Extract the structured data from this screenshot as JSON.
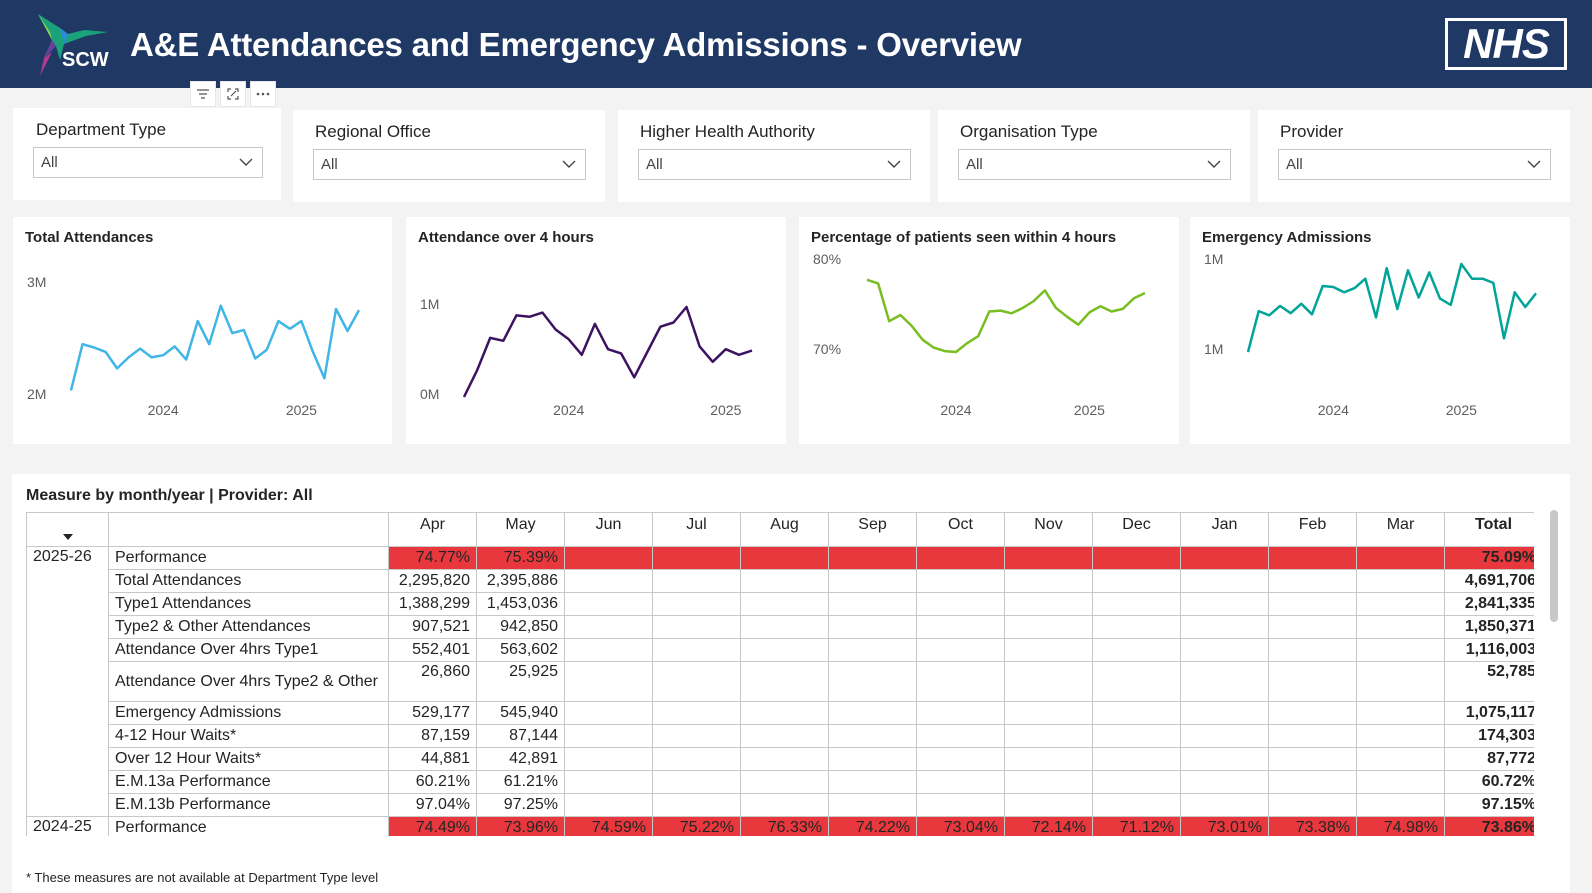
{
  "header": {
    "title": "A&E Attendances and Emergency Admissions - Overview",
    "logo_text": "SCW",
    "nhs_logo": "NHS"
  },
  "toolbar": {
    "icons": [
      "filter-icon",
      "focus-mode-icon",
      "more-options-icon"
    ]
  },
  "slicers": [
    {
      "label": "Department Type",
      "value": "All"
    },
    {
      "label": "Regional Office",
      "value": "All"
    },
    {
      "label": "Higher Health Authority",
      "value": "All"
    },
    {
      "label": "Organisation Type",
      "value": "All"
    },
    {
      "label": "Provider",
      "value": "All"
    }
  ],
  "charts": {
    "total_attendances": {
      "title": "Total Attendances"
    },
    "attendance_4hrs": {
      "title": "Attendance over 4 hours"
    },
    "pct_4hrs": {
      "title": "Percentage of patients seen within 4 hours"
    },
    "emergency_admissions": {
      "title": "Emergency Admissions"
    }
  },
  "chart_data": [
    {
      "type": "line",
      "title": "Total Attendances",
      "color": "#41b6e6",
      "y_ticks": [
        "3M",
        "2M"
      ],
      "ylim": [
        2.0,
        3.0
      ],
      "x_ticks": [
        "2024",
        "2025"
      ],
      "x_tick_index": [
        8,
        20
      ],
      "values": [
        2.06,
        2.48,
        2.45,
        2.41,
        2.26,
        2.36,
        2.44,
        2.36,
        2.38,
        2.46,
        2.34,
        2.69,
        2.48,
        2.83,
        2.58,
        2.61,
        2.35,
        2.43,
        2.69,
        2.62,
        2.69,
        2.41,
        2.17,
        2.8,
        2.6,
        2.79
      ]
    },
    {
      "type": "line",
      "title": "Attendance over 4 hours",
      "color": "#3c1361",
      "y_ticks": [
        "1M",
        "0M"
      ],
      "x_ticks": [
        "2024",
        "2025"
      ],
      "x_tick_index": [
        8,
        20
      ],
      "values": [
        0.26,
        0.45,
        0.68,
        0.66,
        0.84,
        0.83,
        0.86,
        0.74,
        0.67,
        0.56,
        0.78,
        0.6,
        0.57,
        0.4,
        0.58,
        0.76,
        0.79,
        0.9,
        0.62,
        0.51,
        0.6,
        0.56,
        0.59
      ]
    },
    {
      "type": "line",
      "title": "Percentage of patients seen within 4 hours",
      "color": "#78be20",
      "y_ticks": [
        "80%",
        "70%"
      ],
      "ylim": [
        70,
        80
      ],
      "x_ticks": [
        "2024",
        "2025"
      ],
      "x_tick_index": [
        8,
        20
      ],
      "values": [
        78.2,
        77.8,
        73.5,
        74.2,
        73.0,
        71.4,
        70.5,
        70.1,
        70.0,
        71.0,
        71.8,
        74.6,
        74.7,
        74.4,
        75.0,
        75.8,
        77.0,
        75.0,
        74.0,
        73.1,
        74.5,
        75.2,
        74.6,
        74.9,
        76.1,
        76.7
      ]
    },
    {
      "type": "line",
      "title": "Emergency Admissions",
      "color": "#00a499",
      "y_ticks": [
        "1M",
        "1M"
      ],
      "x_ticks": [
        "2024",
        "2025"
      ],
      "x_tick_index": [
        8,
        20
      ],
      "values": [
        0.473,
        0.512,
        0.508,
        0.517,
        0.51,
        0.519,
        0.509,
        0.536,
        0.535,
        0.53,
        0.534,
        0.543,
        0.506,
        0.553,
        0.514,
        0.551,
        0.525,
        0.549,
        0.524,
        0.518,
        0.557,
        0.543,
        0.543,
        0.539,
        0.486,
        0.53,
        0.516,
        0.529
      ]
    }
  ],
  "matrix": {
    "title": "Measure by month/year | Provider: All",
    "columns": [
      "Apr",
      "May",
      "Jun",
      "Jul",
      "Aug",
      "Sep",
      "Oct",
      "Nov",
      "Dec",
      "Jan",
      "Feb",
      "Mar",
      "Total"
    ],
    "group_2025": {
      "year": "2025-26",
      "rows": [
        {
          "label": "Performance",
          "values": [
            "74.77%",
            "75.39%",
            "",
            "",
            "",
            "",
            "",
            "",
            "",
            "",
            "",
            ""
          ],
          "total": "75.09%",
          "red": true
        },
        {
          "label": "Total Attendances",
          "values": [
            "2,295,820",
            "2,395,886",
            "",
            "",
            "",
            "",
            "",
            "",
            "",
            "",
            "",
            ""
          ],
          "total": "4,691,706"
        },
        {
          "label": "Type1 Attendances",
          "values": [
            "1,388,299",
            "1,453,036",
            "",
            "",
            "",
            "",
            "",
            "",
            "",
            "",
            "",
            ""
          ],
          "total": "2,841,335"
        },
        {
          "label": "Type2 & Other Attendances",
          "values": [
            "907,521",
            "942,850",
            "",
            "",
            "",
            "",
            "",
            "",
            "",
            "",
            "",
            ""
          ],
          "total": "1,850,371"
        },
        {
          "label": "Attendance Over 4hrs Type1",
          "values": [
            "552,401",
            "563,602",
            "",
            "",
            "",
            "",
            "",
            "",
            "",
            "",
            "",
            ""
          ],
          "total": "1,116,003"
        },
        {
          "label": "Attendance Over 4hrs Type2 & Other",
          "values": [
            "26,860",
            "25,925",
            "",
            "",
            "",
            "",
            "",
            "",
            "",
            "",
            "",
            ""
          ],
          "total": "52,785",
          "wrap": true
        },
        {
          "label": "Emergency Admissions",
          "values": [
            "529,177",
            "545,940",
            "",
            "",
            "",
            "",
            "",
            "",
            "",
            "",
            "",
            ""
          ],
          "total": "1,075,117"
        },
        {
          "label": "4-12 Hour Waits*",
          "values": [
            "87,159",
            "87,144",
            "",
            "",
            "",
            "",
            "",
            "",
            "",
            "",
            "",
            ""
          ],
          "total": "174,303"
        },
        {
          "label": "Over 12 Hour Waits*",
          "values": [
            "44,881",
            "42,891",
            "",
            "",
            "",
            "",
            "",
            "",
            "",
            "",
            "",
            ""
          ],
          "total": "87,772"
        },
        {
          "label": "E.M.13a Performance",
          "values": [
            "60.21%",
            "61.21%",
            "",
            "",
            "",
            "",
            "",
            "",
            "",
            "",
            "",
            ""
          ],
          "total": "60.72%"
        },
        {
          "label": "E.M.13b Performance",
          "values": [
            "97.04%",
            "97.25%",
            "",
            "",
            "",
            "",
            "",
            "",
            "",
            "",
            "",
            ""
          ],
          "total": "97.15%"
        }
      ]
    },
    "group_2024": {
      "year": "2024-25",
      "rows": [
        {
          "label": "Performance",
          "values": [
            "74.49%",
            "73.96%",
            "74.59%",
            "75.22%",
            "76.33%",
            "74.22%",
            "73.04%",
            "72.14%",
            "71.12%",
            "73.01%",
            "73.38%",
            "74.98%"
          ],
          "total": "73.86%",
          "red": true
        }
      ]
    }
  },
  "footnote": "* These measures are not available at Department Type level",
  "colors": {
    "header_bg": "#1f3864",
    "red_cell": "#e8383d"
  }
}
